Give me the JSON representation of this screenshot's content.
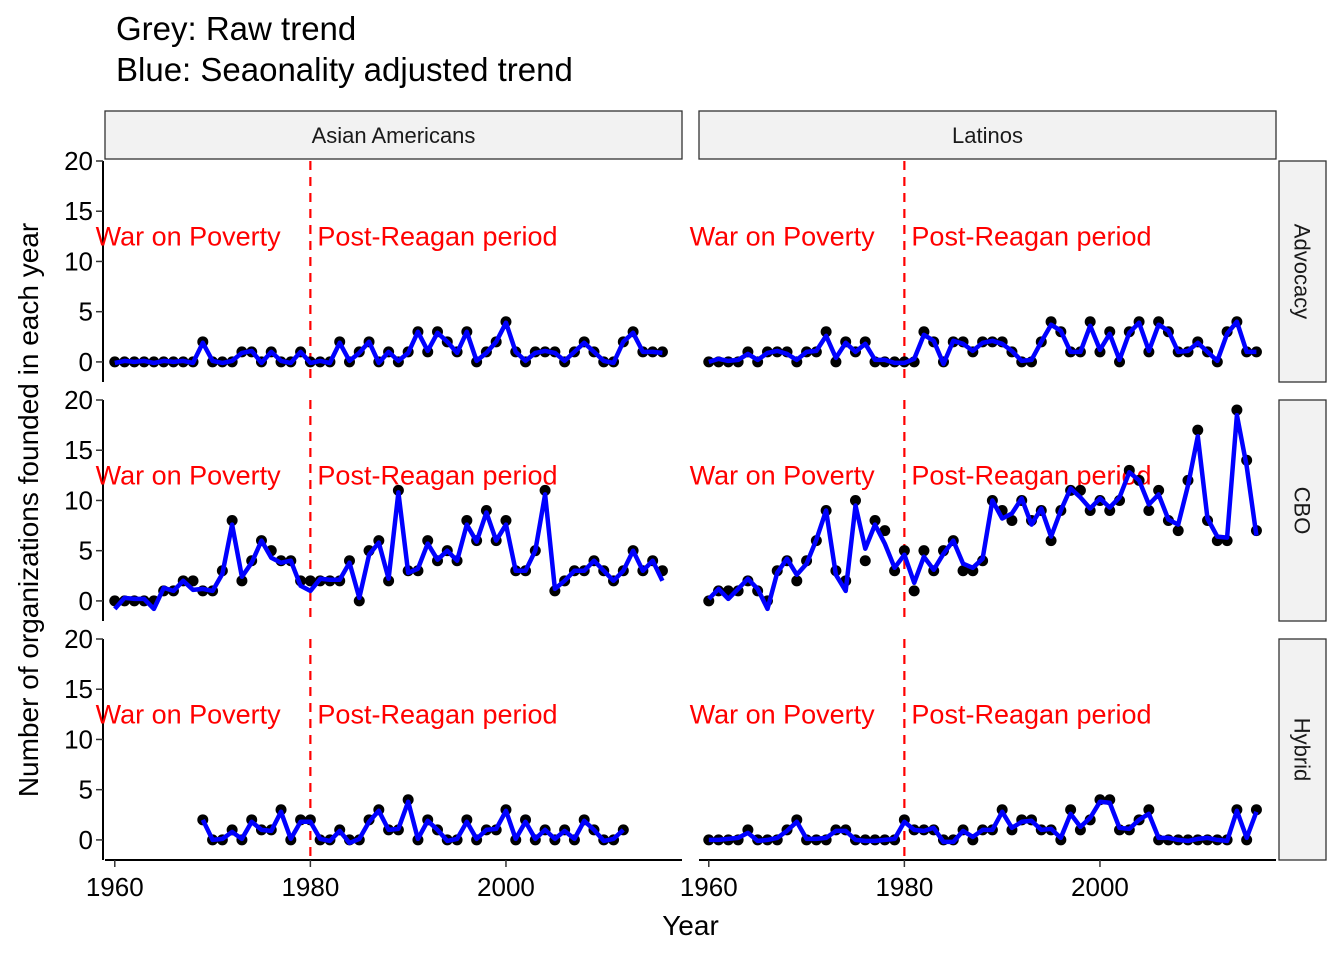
{
  "title_lines": [
    "Grey: Raw trend",
    "Blue: Seaonality adjusted trend"
  ],
  "chart_data": {
    "type": "line",
    "facets": {
      "columns": [
        "Asian Americans",
        "Latinos"
      ],
      "rows": [
        "Advocacy",
        "CBO",
        "Hybrid"
      ]
    },
    "xlabel": "Year",
    "ylabel": "Number of organizations founded in each year",
    "xlim": [
      1959,
      2018
    ],
    "ylim": [
      -2,
      20
    ],
    "xticks": [
      1960,
      1980,
      2000
    ],
    "yticks": [
      0,
      5,
      10,
      15,
      20
    ],
    "vline": {
      "x": 1980,
      "color": "#ff0000",
      "style": "dashed"
    },
    "annotations": [
      {
        "text": "War on Poverty",
        "x": 1967.5,
        "y": 12.5,
        "color": "#ff0000"
      },
      {
        "text": "Post-Reagan period",
        "x": 1993,
        "y": 12.5,
        "color": "#ff0000"
      }
    ],
    "raw_color": "#000000",
    "adjusted_color": "#0000ff",
    "panels": [
      {
        "column": "Asian Americans",
        "row": "Advocacy",
        "x": [
          1960,
          1961,
          1962,
          1963,
          1964,
          1965,
          1966,
          1967,
          1968,
          1969,
          1970,
          1971,
          1972,
          1973,
          1974,
          1975,
          1976,
          1977,
          1978,
          1979,
          1980,
          1981,
          1982,
          1983,
          1984,
          1985,
          1986,
          1987,
          1988,
          1989,
          1990,
          1991,
          1992,
          1993,
          1994,
          1995,
          1996,
          1997,
          1998,
          1999,
          2000,
          2001,
          2002,
          2003,
          2004,
          2005,
          2006,
          2007,
          2008,
          2009,
          2010,
          2011,
          2012,
          2013,
          2014,
          2015,
          2016
        ],
        "raw": [
          0,
          0,
          0,
          0,
          0,
          0,
          0,
          0,
          0,
          2,
          0,
          0,
          0,
          1,
          1,
          0,
          1,
          0,
          0,
          1,
          0,
          0,
          0,
          2,
          0,
          1,
          2,
          0,
          1,
          0,
          1,
          3,
          1,
          3,
          2,
          1,
          3,
          0,
          1,
          2,
          4,
          1,
          0,
          1,
          1,
          1,
          0,
          1,
          2,
          1,
          0,
          0,
          2,
          3,
          1,
          1,
          1
        ],
        "adjusted": [
          -0.1,
          0.1,
          0,
          0.1,
          -0.1,
          0.1,
          0,
          0.1,
          -0.1,
          1.9,
          0.1,
          -0.1,
          0.1,
          0.9,
          1.1,
          -0.1,
          1,
          0.1,
          -0.1,
          1,
          -0.1,
          0.1,
          -0.1,
          1.9,
          0.1,
          0.9,
          2,
          -0.1,
          1,
          0.1,
          0.9,
          3,
          1.1,
          2.9,
          2,
          0.9,
          3,
          0.1,
          0.9,
          2,
          3.9,
          1,
          0.1,
          0.9,
          1.1,
          0.9,
          0.1,
          1,
          1.9,
          1,
          0.1,
          -0.1,
          2,
          2.9,
          1,
          1,
          0.9
        ]
      },
      {
        "column": "Latinos",
        "row": "Advocacy",
        "x": [
          1960,
          1961,
          1962,
          1963,
          1964,
          1965,
          1966,
          1967,
          1968,
          1969,
          1970,
          1971,
          1972,
          1973,
          1974,
          1975,
          1976,
          1977,
          1978,
          1979,
          1980,
          1981,
          1982,
          1983,
          1984,
          1985,
          1986,
          1987,
          1988,
          1989,
          1990,
          1991,
          1992,
          1993,
          1994,
          1995,
          1996,
          1997,
          1998,
          1999,
          2000,
          2001,
          2002,
          2003,
          2004,
          2005,
          2006,
          2007,
          2008,
          2009,
          2010,
          2011,
          2012,
          2013,
          2014,
          2015,
          2016
        ],
        "raw": [
          0,
          0,
          0,
          0,
          1,
          0,
          1,
          1,
          1,
          0,
          1,
          1,
          3,
          0,
          2,
          1,
          2,
          0,
          0,
          0,
          0,
          0,
          3,
          2,
          0,
          2,
          2,
          1,
          2,
          2,
          2,
          1,
          0,
          0,
          2,
          4,
          3,
          1,
          1,
          4,
          1,
          3,
          0,
          3,
          4,
          1,
          4,
          3,
          1,
          1,
          2,
          1,
          0,
          3,
          4,
          1,
          1
        ],
        "adjusted": [
          0,
          0.3,
          0.1,
          0.2,
          0.8,
          0.2,
          0.9,
          1.1,
          0.8,
          0.2,
          1,
          1.1,
          2.6,
          0.4,
          1.9,
          1,
          1.8,
          0.2,
          0.2,
          -0.1,
          -0.1,
          0.3,
          2.7,
          2.1,
          -0.2,
          2.1,
          1.8,
          1.1,
          1.9,
          2.1,
          1.8,
          1.1,
          0.1,
          0.2,
          2,
          3.7,
          3.1,
          1,
          1,
          3.6,
          1.2,
          2.8,
          0.2,
          2.9,
          3.9,
          1.1,
          3.7,
          3.1,
          1,
          1.1,
          1.9,
          1,
          0.1,
          2.8,
          4,
          1,
          1
        ]
      },
      {
        "column": "Asian Americans",
        "row": "CBO",
        "x": [
          1960,
          1961,
          1962,
          1963,
          1964,
          1965,
          1966,
          1967,
          1968,
          1969,
          1970,
          1971,
          1972,
          1973,
          1974,
          1975,
          1976,
          1977,
          1978,
          1979,
          1980,
          1981,
          1982,
          1983,
          1984,
          1985,
          1986,
          1987,
          1988,
          1989,
          1990,
          1991,
          1992,
          1993,
          1994,
          1995,
          1996,
          1997,
          1998,
          1999,
          2000,
          2001,
          2002,
          2003,
          2004,
          2005,
          2006,
          2007,
          2008,
          2009,
          2010,
          2011,
          2012,
          2013,
          2014,
          2015,
          2016
        ],
        "raw": [
          0,
          0,
          0,
          0,
          0,
          1,
          1,
          2,
          2,
          1,
          1,
          3,
          8,
          2,
          4,
          6,
          5,
          4,
          4,
          2,
          2,
          2,
          2,
          2,
          4,
          0,
          5,
          6,
          2,
          11,
          3,
          3,
          6,
          4,
          5,
          4,
          8,
          6,
          9,
          6,
          8,
          3,
          3,
          5,
          11,
          1,
          2,
          3,
          3,
          4,
          3,
          2,
          3,
          5,
          3,
          4,
          3
        ],
        "adjusted": [
          -0.8,
          0.3,
          0.2,
          0.2,
          -0.8,
          1.3,
          1,
          2,
          1.1,
          1.2,
          1,
          2.7,
          7.6,
          2.4,
          3.8,
          6,
          4.3,
          3.8,
          4,
          1.5,
          1,
          2.2,
          2.1,
          2.1,
          3.8,
          0.3,
          4.6,
          5.8,
          2.2,
          10.8,
          2.8,
          3.2,
          5.7,
          4.1,
          5,
          4,
          7.6,
          5.9,
          8.8,
          6,
          7.6,
          3,
          3,
          5,
          10.6,
          1.2,
          2,
          3,
          3,
          4,
          3,
          2,
          3,
          5,
          3,
          4,
          2
        ]
      },
      {
        "column": "Latinos",
        "row": "CBO",
        "x": [
          1960,
          1961,
          1962,
          1963,
          1964,
          1965,
          1966,
          1967,
          1968,
          1969,
          1970,
          1971,
          1972,
          1973,
          1974,
          1975,
          1976,
          1977,
          1978,
          1979,
          1980,
          1981,
          1982,
          1983,
          1984,
          1985,
          1986,
          1987,
          1988,
          1989,
          1990,
          1991,
          1992,
          1993,
          1994,
          1995,
          1996,
          1997,
          1998,
          1999,
          2000,
          2001,
          2002,
          2003,
          2004,
          2005,
          2006,
          2007,
          2008,
          2009,
          2010,
          2011,
          2012,
          2013,
          2014,
          2015,
          2016
        ],
        "raw": [
          0,
          1,
          1,
          1,
          2,
          1,
          0,
          3,
          4,
          2,
          4,
          6,
          9,
          3,
          2,
          10,
          4,
          8,
          7,
          3,
          5,
          1,
          5,
          3,
          5,
          6,
          3,
          3,
          4,
          10,
          9,
          8,
          10,
          8,
          9,
          6,
          9,
          11,
          11,
          9,
          10,
          9,
          10,
          13,
          12,
          9,
          11,
          8,
          7,
          12,
          17,
          8,
          6,
          6,
          19,
          14,
          7
        ],
        "adjusted": [
          0.2,
          1.2,
          0.2,
          1.2,
          2.2,
          1.2,
          -0.8,
          2.8,
          4.2,
          2.6,
          3.7,
          6.1,
          9,
          2.6,
          1,
          9.5,
          5.2,
          7.6,
          5.7,
          3.3,
          4.6,
          1.8,
          4.4,
          3.1,
          4.7,
          6,
          3.7,
          3.3,
          4.2,
          10,
          8.2,
          8.7,
          10.2,
          7.6,
          9.2,
          6.4,
          9,
          11.2,
          10.3,
          9.2,
          10.2,
          9.3,
          10.3,
          12.8,
          12,
          9.6,
          10.6,
          8.1,
          7.6,
          11.5,
          16.4,
          8.2,
          6.4,
          6.3,
          18.5,
          13.4,
          6.5
        ]
      },
      {
        "column": "Asian Americans",
        "row": "Hybrid",
        "x": [
          1969,
          1970,
          1971,
          1972,
          1973,
          1974,
          1975,
          1976,
          1977,
          1978,
          1979,
          1980,
          1981,
          1982,
          1983,
          1984,
          1985,
          1986,
          1987,
          1988,
          1989,
          1990,
          1991,
          1992,
          1993,
          1994,
          1995,
          1996,
          1997,
          1998,
          1999,
          2000,
          2001,
          2002,
          2003,
          2004,
          2005,
          2006,
          2007,
          2008,
          2009,
          2010,
          2011,
          2012
        ],
        "raw": [
          2,
          0,
          0,
          1,
          0,
          2,
          1,
          1,
          3,
          0,
          2,
          2,
          0,
          0,
          1,
          0,
          0,
          2,
          3,
          1,
          1,
          4,
          0,
          2,
          1,
          0,
          0,
          2,
          0,
          1,
          1,
          3,
          0,
          2,
          0,
          1,
          0,
          1,
          0,
          2,
          1,
          0,
          0,
          1
        ],
        "adjusted": [
          2,
          0,
          0.1,
          0.8,
          0.1,
          1.8,
          1,
          0.9,
          2.8,
          0.1,
          1.8,
          1.8,
          0.1,
          -0.1,
          0.9,
          -0.3,
          0.1,
          1.8,
          2.9,
          1,
          1.1,
          3.8,
          0.1,
          1.9,
          1,
          -0.1,
          0.1,
          1.8,
          0.1,
          1,
          1.1,
          2.9,
          0.1,
          1.8,
          0.1,
          1,
          0.1,
          0.9,
          0.1,
          1.9,
          1,
          -0.1,
          0.1,
          1
        ]
      },
      {
        "column": "Latinos",
        "row": "Hybrid",
        "x": [
          1960,
          1961,
          1962,
          1963,
          1964,
          1965,
          1966,
          1967,
          1968,
          1969,
          1970,
          1971,
          1972,
          1973,
          1974,
          1975,
          1976,
          1977,
          1978,
          1979,
          1980,
          1981,
          1982,
          1983,
          1984,
          1985,
          1986,
          1987,
          1988,
          1989,
          1990,
          1991,
          1992,
          1993,
          1994,
          1995,
          1996,
          1997,
          1998,
          1999,
          2000,
          2001,
          2002,
          2003,
          2004,
          2005,
          2006,
          2007,
          2008,
          2009,
          2010,
          2011,
          2012,
          2013,
          2014,
          2015,
          2016
        ],
        "raw": [
          0,
          0,
          0,
          0,
          1,
          0,
          0,
          0,
          1,
          2,
          0,
          0,
          0,
          1,
          1,
          0,
          0,
          0,
          0,
          0,
          2,
          1,
          1,
          1,
          0,
          0,
          1,
          0,
          1,
          1,
          3,
          1,
          2,
          2,
          1,
          1,
          0,
          3,
          1,
          2,
          4,
          4,
          1,
          1,
          2,
          3,
          0,
          0,
          0,
          0,
          0,
          0,
          0,
          0,
          3,
          0,
          3
        ],
        "adjusted": [
          0,
          0,
          0.1,
          0.2,
          0.7,
          -0.1,
          0,
          0.2,
          0.9,
          1.8,
          0.1,
          0.1,
          0.2,
          0.9,
          0.9,
          0,
          -0.1,
          -0.1,
          0,
          0.1,
          1.8,
          1,
          0.9,
          1.2,
          -0.2,
          -0.2,
          0.9,
          0.3,
          1,
          1,
          2.8,
          1.2,
          1.8,
          1.9,
          1,
          1.1,
          0.2,
          2.6,
          1.3,
          2.2,
          3.8,
          3.7,
          1.2,
          1.1,
          2,
          2.6,
          0.2,
          0.2,
          0,
          -0.1,
          0.1,
          0.2,
          0,
          -0.1,
          2.9,
          0.2,
          2.8
        ]
      }
    ]
  }
}
